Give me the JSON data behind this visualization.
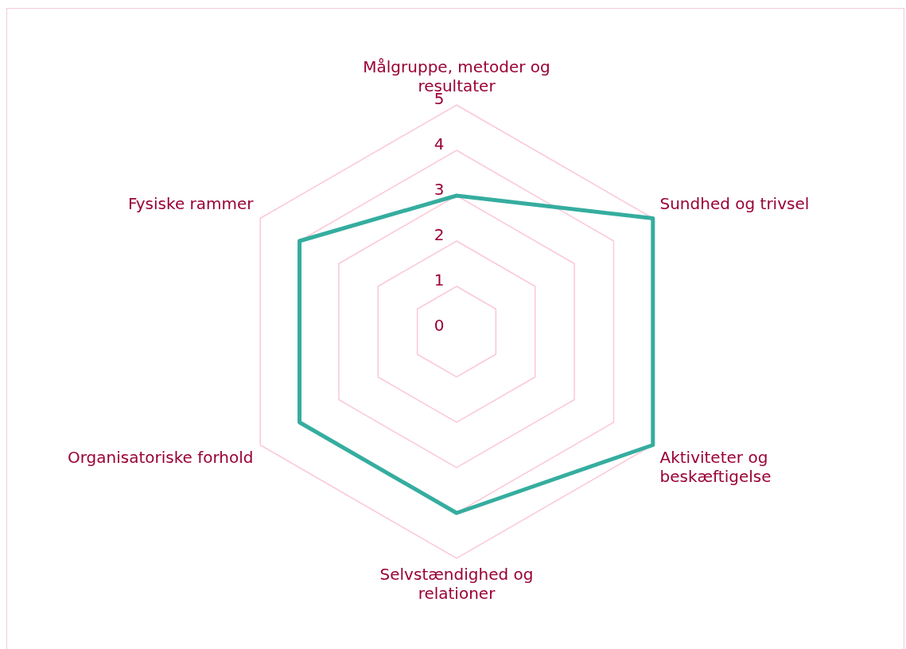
{
  "chart_data": {
    "type": "radar",
    "categories": [
      "Målgruppe, metoder og resultater",
      "Sundhed og trivsel",
      "Aktiviteter og beskæftigelse",
      "Selvstændighed og relationer",
      "Organisatoriske forhold",
      "Fysiske rammer"
    ],
    "series": [
      {
        "color": "#35ad9f",
        "values": [
          3,
          5,
          5,
          4,
          4,
          4
        ]
      }
    ],
    "ylim": [
      0,
      5
    ],
    "yticks": [
      0,
      1,
      2,
      3,
      4,
      5
    ],
    "grid": true,
    "marker": "none",
    "legend": false
  }
}
